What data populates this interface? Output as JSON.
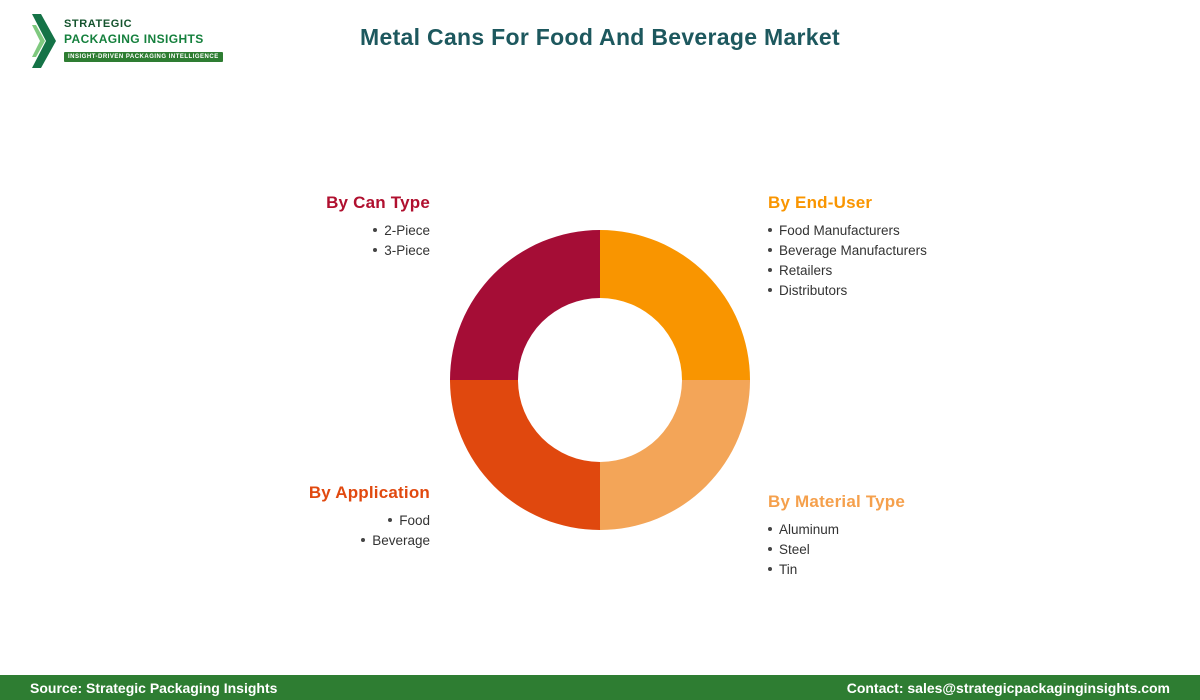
{
  "logo": {
    "line1": "STRATEGIC",
    "line2": "PACKAGING INSIGHTS",
    "tagline": "INSIGHT-DRIVEN PACKAGING INTELLIGENCE",
    "icon_dark_green": "#157347",
    "icon_light_green": "#7fc97f"
  },
  "header": {
    "title": "Metal Cans For Food And Beverage Market",
    "title_color": "#1d585e"
  },
  "donut": {
    "type": "donut-segmentation",
    "equal_quadrants": true,
    "quadrants": {
      "top_left": "#a50d36",
      "top_right": "#f99500",
      "bottom_right": "#f3a558",
      "bottom_left": "#e0480e"
    }
  },
  "segments": [
    {
      "label": "By Can Type",
      "color": "#b0102f",
      "items": [
        "2-Piece",
        "3-Piece"
      ]
    },
    {
      "label": "By End-User",
      "color": "#f99500",
      "items": [
        "Food Manufacturers",
        "Beverage Manufacturers",
        "Retailers",
        "Distributors"
      ]
    },
    {
      "label": "By Application",
      "color": "#e1490f",
      "items": [
        "Food",
        "Beverage"
      ]
    },
    {
      "label": "By Material Type",
      "color": "#f5a04c",
      "items": [
        "Aluminum",
        "Steel",
        "Tin"
      ]
    }
  ],
  "footer": {
    "source": "Source: Strategic Packaging Insights",
    "contact": "Contact: sales@strategicpackaginginsights.com",
    "background": "#2e7d32"
  }
}
